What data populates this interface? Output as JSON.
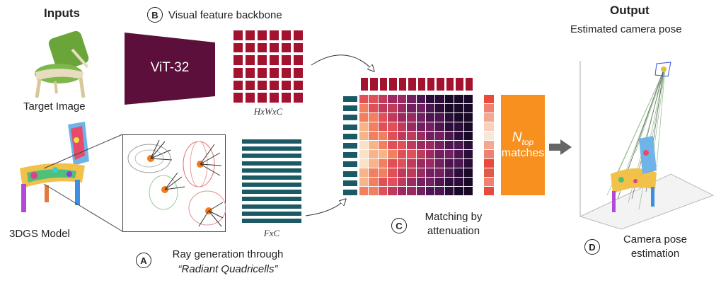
{
  "inputs": {
    "title": "Inputs",
    "target_image_label": "Target Image",
    "model_label": "3DGS Model"
  },
  "backbone": {
    "badge": "B",
    "caption": "Visual feature backbone",
    "block_label": "ViT-32",
    "feature_dims": "HxWxC"
  },
  "rays": {
    "badge": "A",
    "caption_line1": "Ray generation through",
    "caption_line2": "“Radiant Quadricells”",
    "feature_dims": "FxC"
  },
  "matching": {
    "badge": "C",
    "caption_line1": "Matching by",
    "caption_line2": "attenuation",
    "n_symbol": "N",
    "n_subscript": "top",
    "matches_label": "matches"
  },
  "output": {
    "title": "Output",
    "pose_label": "Estimated camera pose",
    "badge": "D",
    "estimation_line1": "Camera pose",
    "estimation_line2": "estimation"
  },
  "colors": {
    "vit": "#5b0f3a",
    "feature_red": "#a3122f",
    "feature_teal": "#1a5a65",
    "ntop": "#f7901e"
  }
}
